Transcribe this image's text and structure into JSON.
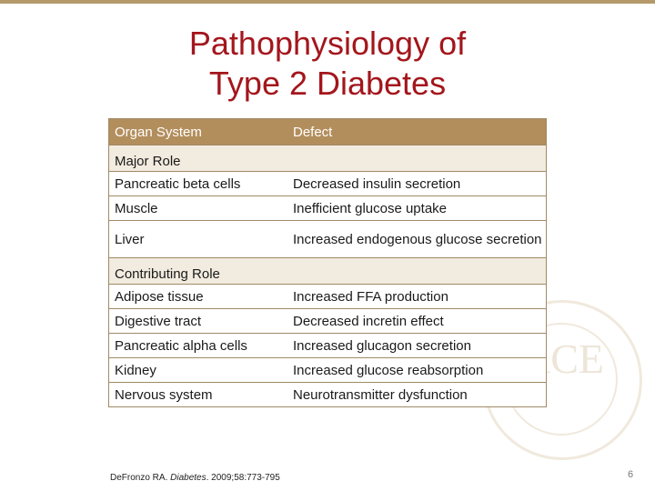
{
  "slide": {
    "title_line1": "Pathophysiology of",
    "title_line2": "Type 2 Diabetes",
    "page_number": "6"
  },
  "table": {
    "headers": [
      "Organ System",
      "Defect"
    ],
    "sections": [
      {
        "label": "Major Role",
        "rows": [
          [
            "Pancreatic beta cells",
            "Decreased insulin secretion"
          ],
          [
            "Muscle",
            "Inefficient glucose uptake"
          ],
          [
            "Liver",
            "Increased endogenous glucose secretion"
          ]
        ]
      },
      {
        "label": "Contributing Role",
        "rows": [
          [
            "Adipose tissue",
            "Increased FFA production"
          ],
          [
            "Digestive tract",
            "Decreased incretin effect"
          ],
          [
            "Pancreatic alpha cells",
            "Increased glucagon secretion"
          ],
          [
            "Kidney",
            "Increased glucose reabsorption"
          ],
          [
            "Nervous system",
            "Neurotransmitter dysfunction"
          ]
        ]
      }
    ]
  },
  "citation": {
    "authors": "DeFronzo RA. ",
    "journal": "Diabetes",
    "details": ". 2009;58:773-795"
  },
  "watermark": {
    "letters": "ACE"
  },
  "colors": {
    "title": "#a3161c",
    "header_bg": "#b38e5d",
    "section_bg": "#f2ebdf"
  }
}
